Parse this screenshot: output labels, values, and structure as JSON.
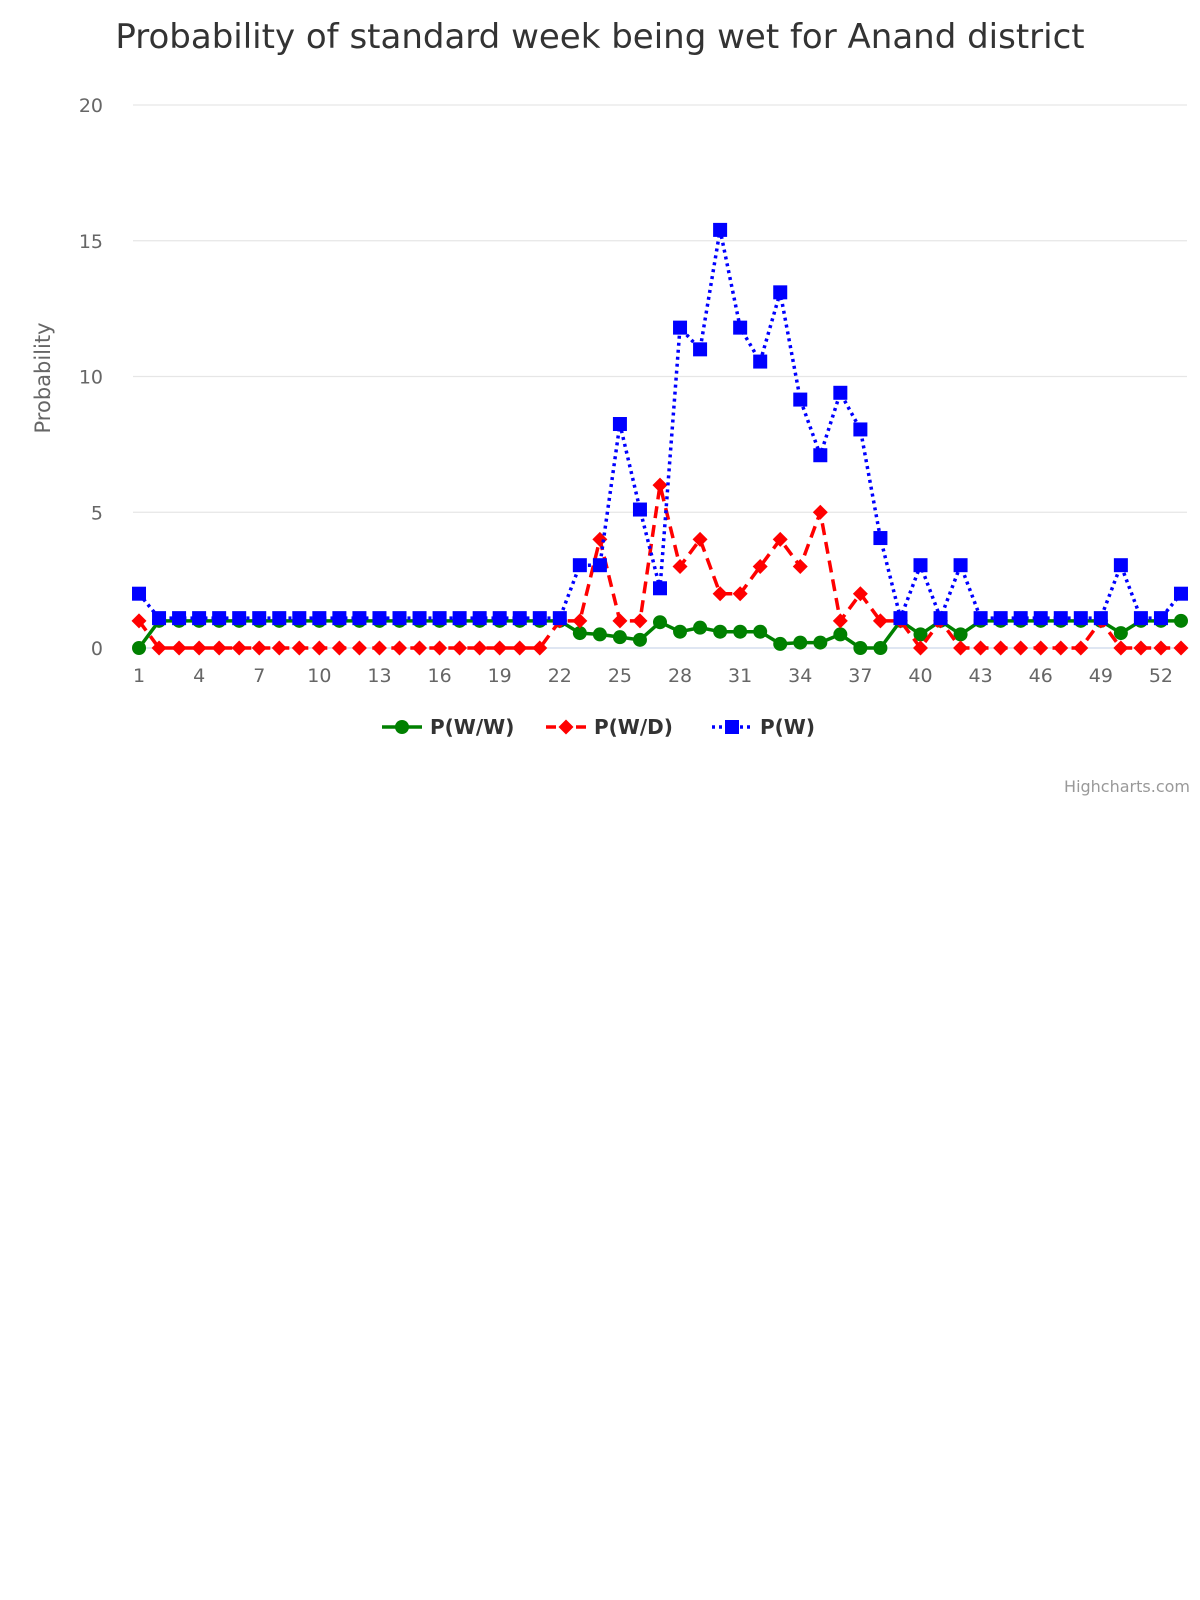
{
  "chart_data": {
    "type": "line",
    "title": "Probability of standard week being wet for Anand district",
    "ylabel": "Probability",
    "xlabel": "",
    "ylim": [
      0,
      20
    ],
    "yticks": [
      0,
      5,
      10,
      15,
      20
    ],
    "x": [
      1,
      2,
      3,
      4,
      5,
      6,
      7,
      8,
      9,
      10,
      11,
      12,
      13,
      14,
      15,
      16,
      17,
      18,
      19,
      20,
      21,
      22,
      23,
      24,
      25,
      26,
      27,
      28,
      29,
      30,
      31,
      32,
      33,
      34,
      35,
      36,
      37,
      38,
      39,
      40,
      41,
      42,
      43,
      44,
      45,
      46,
      47,
      48,
      49,
      50,
      51,
      52,
      53
    ],
    "xtick_labels": [
      "1",
      "4",
      "7",
      "10",
      "13",
      "16",
      "19",
      "22",
      "25",
      "28",
      "31",
      "34",
      "37",
      "40",
      "43",
      "46",
      "49",
      "52"
    ],
    "grid": true,
    "legend_position": "bottom-center",
    "credits": "Highcharts.com",
    "series": [
      {
        "name": "P(W/W)",
        "color": "#008000",
        "marker": "circle",
        "dash": "solid",
        "values": [
          0,
          1,
          1,
          1,
          1,
          1,
          1,
          1,
          1,
          1,
          1,
          1,
          1,
          1,
          1,
          1,
          1,
          1,
          1,
          1,
          1,
          1,
          0.55,
          0.5,
          0.4,
          0.3,
          0.95,
          0.6,
          0.75,
          0.6,
          0.6,
          0.6,
          0.15,
          0.2,
          0.2,
          0.5,
          0,
          0,
          1,
          0.5,
          1,
          0.5,
          1,
          1,
          1,
          1,
          1,
          1,
          1,
          0.55,
          1,
          1,
          1
        ]
      },
      {
        "name": "P(W/D)",
        "color": "#ff0000",
        "marker": "diamond",
        "dash": "dashed",
        "values": [
          1,
          0,
          0,
          0,
          0,
          0,
          0,
          0,
          0,
          0,
          0,
          0,
          0,
          0,
          0,
          0,
          0,
          0,
          0,
          0,
          0,
          1,
          1,
          4,
          1,
          1,
          6,
          3,
          4,
          2,
          2,
          3,
          4,
          3,
          5,
          1,
          2,
          1,
          1,
          0,
          1,
          0,
          0,
          0,
          0,
          0,
          0,
          0,
          1,
          0,
          0,
          0,
          0
        ]
      },
      {
        "name": "P(W)",
        "color": "#0000ff",
        "marker": "square",
        "dash": "dotted",
        "values": [
          2,
          1.1,
          1.1,
          1.1,
          1.1,
          1.1,
          1.1,
          1.1,
          1.1,
          1.1,
          1.1,
          1.1,
          1.1,
          1.1,
          1.1,
          1.1,
          1.1,
          1.1,
          1.1,
          1.1,
          1.1,
          1.1,
          3.05,
          3.05,
          8.25,
          5.1,
          2.2,
          11.8,
          11,
          15.4,
          11.8,
          10.55,
          13.1,
          9.15,
          7.1,
          9.4,
          8.05,
          4.05,
          1.1,
          3.05,
          1.1,
          3.05,
          1.1,
          1.1,
          1.1,
          1.1,
          1.1,
          1.1,
          1.1,
          3.05,
          1.1,
          1.1,
          2
        ]
      }
    ]
  }
}
